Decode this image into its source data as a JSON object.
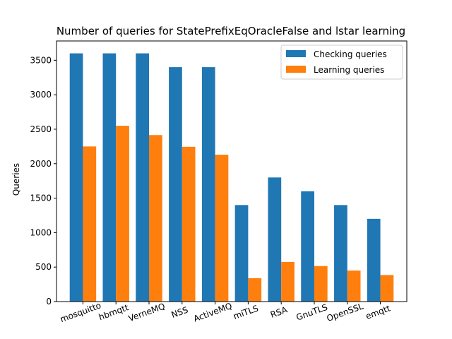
{
  "chart_data": {
    "type": "bar",
    "title": "Number of queries for StatePrefixEqOracleFalse and lstar learning",
    "xlabel": "",
    "ylabel": "Queries",
    "ylim": [
      0,
      3780
    ],
    "yticks": [
      0,
      500,
      1000,
      1500,
      2000,
      2500,
      3000,
      3500
    ],
    "grid": false,
    "legend_position": "top-right",
    "categories": [
      "mosquitto",
      "hbmqtt",
      "VerneMQ",
      "NSS",
      "ActiveMQ",
      "miTLS",
      "RSA",
      "GnuTLS",
      "OpenSSL",
      "emqtt"
    ],
    "series": [
      {
        "name": "Checking queries",
        "color": "#1f77b4",
        "values": [
          3600,
          3600,
          3600,
          3400,
          3400,
          1400,
          1800,
          1600,
          1400,
          1200
        ]
      },
      {
        "name": "Learning queries",
        "color": "#ff7f0e",
        "values": [
          2250,
          2550,
          2415,
          2245,
          2130,
          340,
          575,
          515,
          450,
          385
        ]
      }
    ]
  }
}
